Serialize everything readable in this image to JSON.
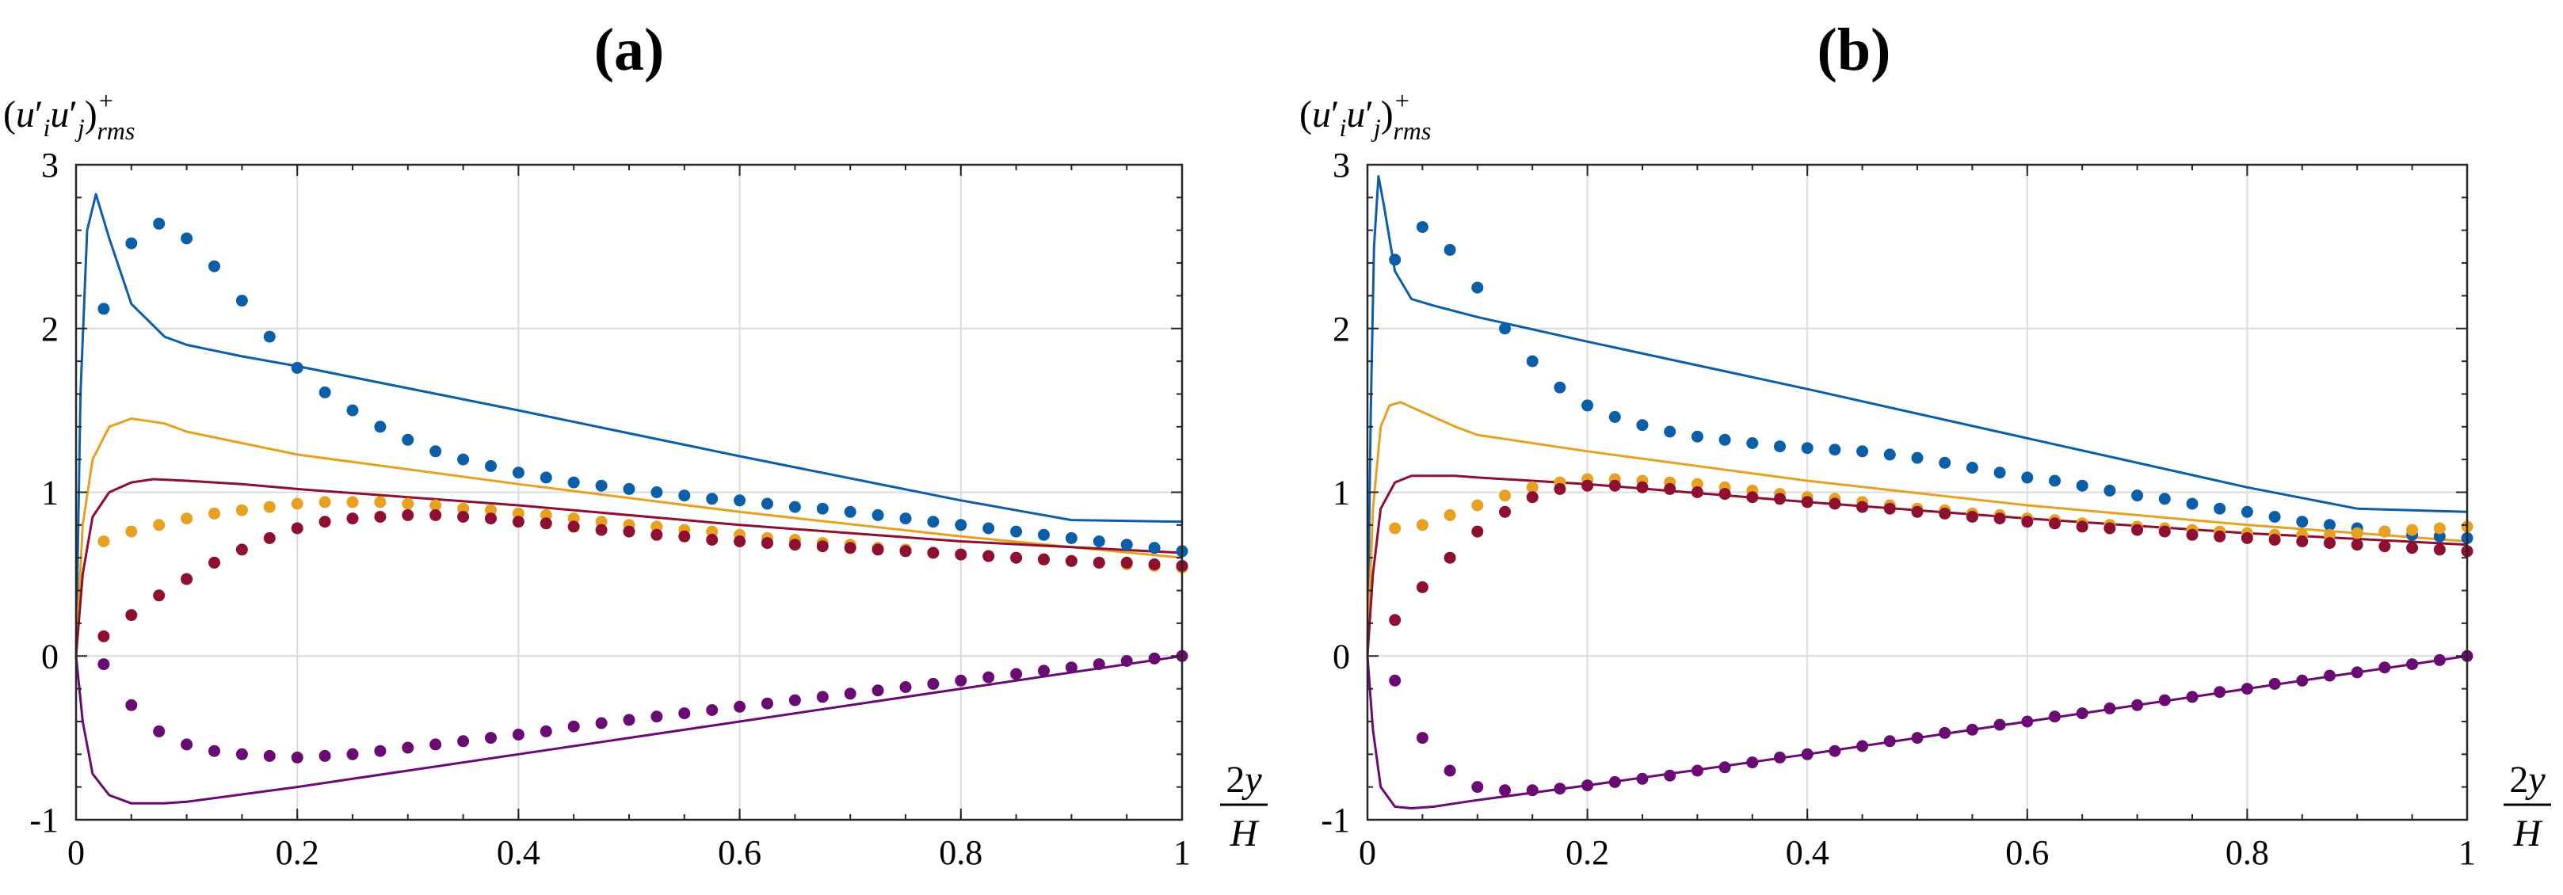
{
  "chart_data": [
    {
      "type": "line",
      "title": "(a)",
      "ylabel": "(u′iu′j)+rms",
      "xlabel": "2y/H",
      "xlim": [
        0,
        1
      ],
      "ylim": [
        -1,
        3
      ],
      "xticks": [
        "0",
        "0.2",
        "0.4",
        "0.6",
        "0.8",
        "1"
      ],
      "yticks": [
        "-1",
        "0",
        "1",
        "2",
        "3"
      ],
      "grid": true,
      "lines": [
        {
          "color": "#0a5fa8",
          "x": [
            0,
            0.004,
            0.01,
            0.018,
            0.03,
            0.05,
            0.08,
            0.1,
            0.15,
            0.2,
            0.4,
            0.6,
            0.8,
            0.9,
            1.0
          ],
          "y": [
            0,
            1.6,
            2.6,
            2.82,
            2.55,
            2.15,
            1.95,
            1.9,
            1.83,
            1.77,
            1.5,
            1.22,
            0.95,
            0.83,
            0.82
          ]
        },
        {
          "color": "#e8a020",
          "x": [
            0,
            0.006,
            0.015,
            0.03,
            0.05,
            0.08,
            0.1,
            0.2,
            0.4,
            0.6,
            0.8,
            1.0
          ],
          "y": [
            0,
            0.8,
            1.2,
            1.4,
            1.45,
            1.42,
            1.37,
            1.23,
            1.05,
            0.88,
            0.73,
            0.6
          ]
        },
        {
          "color": "#8e0f30",
          "x": [
            0,
            0.006,
            0.015,
            0.03,
            0.05,
            0.07,
            0.1,
            0.15,
            0.2,
            0.4,
            0.6,
            0.8,
            1.0
          ],
          "y": [
            0,
            0.5,
            0.85,
            1.0,
            1.06,
            1.08,
            1.07,
            1.05,
            1.02,
            0.92,
            0.8,
            0.7,
            0.63
          ]
        },
        {
          "color": "#6a0a73",
          "x": [
            0,
            0.006,
            0.015,
            0.03,
            0.05,
            0.08,
            0.1,
            0.2,
            0.4,
            0.6,
            0.8,
            1.0
          ],
          "y": [
            0,
            -0.4,
            -0.72,
            -0.85,
            -0.9,
            -0.9,
            -0.89,
            -0.8,
            -0.6,
            -0.4,
            -0.2,
            0
          ]
        }
      ],
      "points": [
        {
          "color": "#0a5fa8",
          "x": [
            0.025,
            0.05,
            0.075,
            0.1,
            0.125,
            0.15,
            0.175,
            0.2,
            0.225,
            0.25,
            0.275,
            0.3,
            0.325,
            0.35,
            0.375,
            0.4,
            0.425,
            0.45,
            0.475,
            0.5,
            0.525,
            0.55,
            0.575,
            0.6,
            0.625,
            0.65,
            0.675,
            0.7,
            0.725,
            0.75,
            0.775,
            0.8,
            0.825,
            0.85,
            0.875,
            0.9,
            0.925,
            0.95,
            0.975,
            1.0
          ],
          "y": [
            2.12,
            2.52,
            2.64,
            2.55,
            2.38,
            2.17,
            1.95,
            1.76,
            1.61,
            1.5,
            1.4,
            1.32,
            1.25,
            1.2,
            1.16,
            1.12,
            1.09,
            1.06,
            1.04,
            1.02,
            1.0,
            0.98,
            0.96,
            0.95,
            0.93,
            0.91,
            0.9,
            0.88,
            0.86,
            0.84,
            0.82,
            0.8,
            0.78,
            0.76,
            0.74,
            0.72,
            0.7,
            0.68,
            0.66,
            0.64
          ]
        },
        {
          "color": "#e8a020",
          "x": [
            0.025,
            0.05,
            0.075,
            0.1,
            0.125,
            0.15,
            0.175,
            0.2,
            0.225,
            0.25,
            0.275,
            0.3,
            0.325,
            0.35,
            0.375,
            0.4,
            0.425,
            0.45,
            0.475,
            0.5,
            0.525,
            0.55,
            0.575,
            0.6,
            0.625,
            0.65,
            0.675,
            0.7,
            0.725,
            0.75,
            0.775,
            0.8,
            0.825,
            0.85,
            0.875,
            0.9,
            0.925,
            0.95,
            0.975,
            1.0
          ],
          "y": [
            0.7,
            0.76,
            0.8,
            0.84,
            0.87,
            0.89,
            0.91,
            0.93,
            0.94,
            0.94,
            0.94,
            0.93,
            0.92,
            0.9,
            0.89,
            0.87,
            0.86,
            0.84,
            0.82,
            0.8,
            0.79,
            0.77,
            0.76,
            0.74,
            0.72,
            0.71,
            0.69,
            0.68,
            0.66,
            0.65,
            0.63,
            0.62,
            0.61,
            0.6,
            0.59,
            0.58,
            0.57,
            0.56,
            0.55,
            0.54
          ]
        },
        {
          "color": "#8e0f30",
          "x": [
            0.025,
            0.05,
            0.075,
            0.1,
            0.125,
            0.15,
            0.175,
            0.2,
            0.225,
            0.25,
            0.275,
            0.3,
            0.325,
            0.35,
            0.375,
            0.4,
            0.425,
            0.45,
            0.475,
            0.5,
            0.525,
            0.55,
            0.575,
            0.6,
            0.625,
            0.65,
            0.675,
            0.7,
            0.725,
            0.75,
            0.775,
            0.8,
            0.825,
            0.85,
            0.875,
            0.9,
            0.925,
            0.95,
            0.975,
            1.0
          ],
          "y": [
            0.12,
            0.25,
            0.37,
            0.47,
            0.57,
            0.65,
            0.72,
            0.78,
            0.82,
            0.84,
            0.85,
            0.86,
            0.86,
            0.85,
            0.84,
            0.82,
            0.81,
            0.79,
            0.77,
            0.76,
            0.74,
            0.73,
            0.71,
            0.7,
            0.69,
            0.68,
            0.67,
            0.66,
            0.65,
            0.64,
            0.63,
            0.62,
            0.61,
            0.6,
            0.59,
            0.58,
            0.57,
            0.57,
            0.56,
            0.55
          ]
        },
        {
          "color": "#6a0a73",
          "x": [
            0.025,
            0.05,
            0.075,
            0.1,
            0.125,
            0.15,
            0.175,
            0.2,
            0.225,
            0.25,
            0.275,
            0.3,
            0.325,
            0.35,
            0.375,
            0.4,
            0.425,
            0.45,
            0.475,
            0.5,
            0.525,
            0.55,
            0.575,
            0.6,
            0.625,
            0.65,
            0.675,
            0.7,
            0.725,
            0.75,
            0.775,
            0.8,
            0.825,
            0.85,
            0.875,
            0.9,
            0.925,
            0.95,
            0.975,
            1.0
          ],
          "y": [
            -0.05,
            -0.3,
            -0.46,
            -0.54,
            -0.58,
            -0.6,
            -0.61,
            -0.62,
            -0.61,
            -0.6,
            -0.58,
            -0.56,
            -0.54,
            -0.52,
            -0.5,
            -0.48,
            -0.46,
            -0.43,
            -0.41,
            -0.39,
            -0.37,
            -0.35,
            -0.33,
            -0.31,
            -0.29,
            -0.27,
            -0.25,
            -0.23,
            -0.21,
            -0.19,
            -0.17,
            -0.15,
            -0.13,
            -0.11,
            -0.09,
            -0.07,
            -0.05,
            -0.03,
            -0.015,
            0.0
          ]
        }
      ]
    },
    {
      "type": "line",
      "title": "(b)",
      "ylabel": "(u′iu′j)+rms",
      "xlabel": "2y/H",
      "xlim": [
        0,
        1
      ],
      "ylim": [
        -1,
        3
      ],
      "xticks": [
        "0",
        "0.2",
        "0.4",
        "0.6",
        "0.8",
        "1"
      ],
      "yticks": [
        "-1",
        "0",
        "1",
        "2",
        "3"
      ],
      "grid": true,
      "lines": [
        {
          "color": "#0a5fa8",
          "x": [
            0,
            0.003,
            0.006,
            0.01,
            0.015,
            0.025,
            0.04,
            0.06,
            0.1,
            0.2,
            0.4,
            0.6,
            0.8,
            0.9,
            1.0
          ],
          "y": [
            0,
            1.5,
            2.5,
            2.93,
            2.75,
            2.35,
            2.18,
            2.14,
            2.07,
            1.92,
            1.63,
            1.33,
            1.03,
            0.9,
            0.88
          ]
        },
        {
          "color": "#e8a020",
          "x": [
            0,
            0.005,
            0.012,
            0.02,
            0.03,
            0.05,
            0.08,
            0.1,
            0.2,
            0.4,
            0.6,
            0.8,
            1.0
          ],
          "y": [
            0,
            0.9,
            1.4,
            1.53,
            1.55,
            1.49,
            1.4,
            1.35,
            1.25,
            1.07,
            0.92,
            0.8,
            0.7
          ]
        },
        {
          "color": "#8e0f30",
          "x": [
            0,
            0.005,
            0.012,
            0.025,
            0.04,
            0.06,
            0.08,
            0.1,
            0.2,
            0.4,
            0.6,
            0.8,
            1.0
          ],
          "y": [
            0,
            0.5,
            0.9,
            1.06,
            1.1,
            1.1,
            1.1,
            1.09,
            1.05,
            0.94,
            0.84,
            0.75,
            0.68
          ]
        },
        {
          "color": "#6a0a73",
          "x": [
            0,
            0.005,
            0.012,
            0.025,
            0.04,
            0.06,
            0.08,
            0.1,
            0.2,
            0.4,
            0.6,
            0.8,
            1.0
          ],
          "y": [
            0,
            -0.45,
            -0.8,
            -0.92,
            -0.93,
            -0.92,
            -0.9,
            -0.88,
            -0.79,
            -0.6,
            -0.4,
            -0.2,
            0
          ]
        }
      ],
      "points": [
        {
          "color": "#0a5fa8",
          "x": [
            0.025,
            0.05,
            0.075,
            0.1,
            0.125,
            0.15,
            0.175,
            0.2,
            0.225,
            0.25,
            0.275,
            0.3,
            0.325,
            0.35,
            0.375,
            0.4,
            0.425,
            0.45,
            0.475,
            0.5,
            0.525,
            0.55,
            0.575,
            0.6,
            0.625,
            0.65,
            0.675,
            0.7,
            0.725,
            0.75,
            0.775,
            0.8,
            0.825,
            0.85,
            0.875,
            0.9,
            0.925,
            0.95,
            0.975,
            1.0
          ],
          "y": [
            2.42,
            2.62,
            2.48,
            2.25,
            2.0,
            1.8,
            1.64,
            1.53,
            1.46,
            1.41,
            1.37,
            1.34,
            1.32,
            1.3,
            1.28,
            1.27,
            1.26,
            1.25,
            1.23,
            1.21,
            1.18,
            1.15,
            1.12,
            1.09,
            1.07,
            1.04,
            1.01,
            0.98,
            0.96,
            0.93,
            0.9,
            0.88,
            0.85,
            0.82,
            0.8,
            0.78,
            0.76,
            0.74,
            0.73,
            0.72
          ]
        },
        {
          "color": "#e8a020",
          "x": [
            0.025,
            0.05,
            0.075,
            0.1,
            0.125,
            0.15,
            0.175,
            0.2,
            0.225,
            0.25,
            0.275,
            0.3,
            0.325,
            0.35,
            0.375,
            0.4,
            0.425,
            0.45,
            0.475,
            0.5,
            0.525,
            0.55,
            0.575,
            0.6,
            0.625,
            0.65,
            0.675,
            0.7,
            0.725,
            0.75,
            0.775,
            0.8,
            0.825,
            0.85,
            0.875,
            0.9,
            0.925,
            0.95,
            0.975,
            1.0
          ],
          "y": [
            0.78,
            0.8,
            0.86,
            0.92,
            0.98,
            1.03,
            1.06,
            1.08,
            1.08,
            1.07,
            1.06,
            1.05,
            1.03,
            1.01,
            0.99,
            0.97,
            0.96,
            0.94,
            0.92,
            0.9,
            0.89,
            0.87,
            0.86,
            0.84,
            0.83,
            0.81,
            0.8,
            0.79,
            0.78,
            0.77,
            0.76,
            0.75,
            0.74,
            0.74,
            0.74,
            0.75,
            0.76,
            0.77,
            0.78,
            0.79
          ]
        },
        {
          "color": "#8e0f30",
          "x": [
            0.025,
            0.05,
            0.075,
            0.1,
            0.125,
            0.15,
            0.175,
            0.2,
            0.225,
            0.25,
            0.275,
            0.3,
            0.325,
            0.35,
            0.375,
            0.4,
            0.425,
            0.45,
            0.475,
            0.5,
            0.525,
            0.55,
            0.575,
            0.6,
            0.625,
            0.65,
            0.675,
            0.7,
            0.725,
            0.75,
            0.775,
            0.8,
            0.825,
            0.85,
            0.875,
            0.9,
            0.925,
            0.95,
            0.975,
            1.0
          ],
          "y": [
            0.22,
            0.42,
            0.6,
            0.76,
            0.88,
            0.97,
            1.02,
            1.04,
            1.04,
            1.03,
            1.02,
            1.0,
            0.99,
            0.97,
            0.96,
            0.94,
            0.93,
            0.91,
            0.9,
            0.88,
            0.87,
            0.85,
            0.84,
            0.82,
            0.81,
            0.79,
            0.78,
            0.77,
            0.76,
            0.74,
            0.73,
            0.72,
            0.71,
            0.7,
            0.69,
            0.68,
            0.67,
            0.66,
            0.65,
            0.64
          ]
        },
        {
          "color": "#6a0a73",
          "x": [
            0.025,
            0.05,
            0.075,
            0.1,
            0.125,
            0.15,
            0.175,
            0.2,
            0.225,
            0.25,
            0.275,
            0.3,
            0.325,
            0.35,
            0.375,
            0.4,
            0.425,
            0.45,
            0.475,
            0.5,
            0.525,
            0.55,
            0.575,
            0.6,
            0.625,
            0.65,
            0.675,
            0.7,
            0.725,
            0.75,
            0.775,
            0.8,
            0.825,
            0.85,
            0.875,
            0.9,
            0.925,
            0.95,
            0.975,
            1.0
          ],
          "y": [
            -0.15,
            -0.5,
            -0.7,
            -0.8,
            -0.82,
            -0.82,
            -0.81,
            -0.79,
            -0.77,
            -0.75,
            -0.73,
            -0.7,
            -0.68,
            -0.65,
            -0.62,
            -0.6,
            -0.58,
            -0.55,
            -0.52,
            -0.5,
            -0.47,
            -0.45,
            -0.42,
            -0.4,
            -0.37,
            -0.35,
            -0.32,
            -0.3,
            -0.27,
            -0.25,
            -0.22,
            -0.2,
            -0.17,
            -0.15,
            -0.12,
            -0.1,
            -0.07,
            -0.05,
            -0.025,
            0.0
          ]
        }
      ]
    }
  ]
}
